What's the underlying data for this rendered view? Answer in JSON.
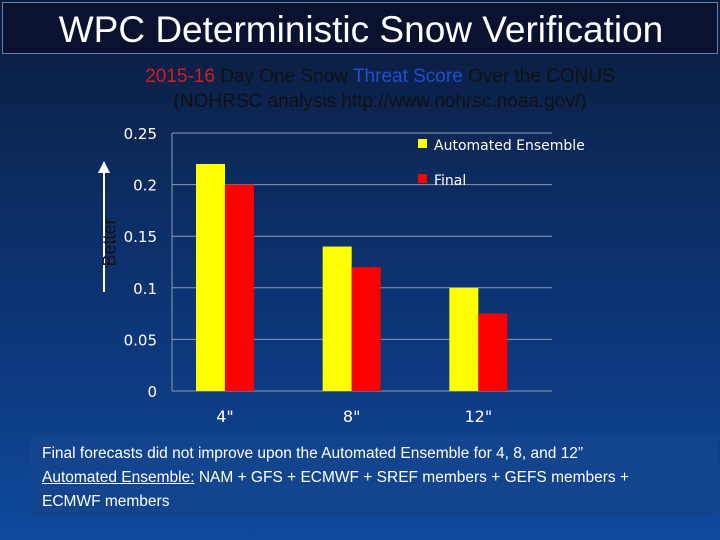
{
  "title": "WPC Deterministic Snow Verification",
  "subtitle": {
    "year": "2015-16",
    "part1": "Day One Snow",
    "part2": "Threat Score",
    "part3": "Over the CONUS",
    "line2": "(NOHRSC analysis http://www.nohrsc.noaa.gov/)"
  },
  "better_label": "Better",
  "chart_data": {
    "type": "bar",
    "categories": [
      "4\"",
      "8\"",
      "12\""
    ],
    "series": [
      {
        "name": "Automated Ensemble",
        "color": "#ffff00",
        "values": [
          0.22,
          0.14,
          0.1
        ]
      },
      {
        "name": "Final",
        "color": "#ff0000",
        "values": [
          0.2,
          0.12,
          0.075
        ]
      }
    ],
    "yticks": [
      "0",
      "0.05",
      "0.1",
      "0.15",
      "0.2",
      "0.25"
    ],
    "ylim": [
      0,
      0.25
    ],
    "grid": true,
    "legend": "top-right"
  },
  "footer": {
    "line1": "Final forecasts did not improve upon the Automated Ensemble for 4, 8, and 12”",
    "label": "Automated Ensemble:",
    "members": " NAM + GFS + ECMWF + SREF members + GEFS members +",
    "line3": "ECMWF members"
  }
}
